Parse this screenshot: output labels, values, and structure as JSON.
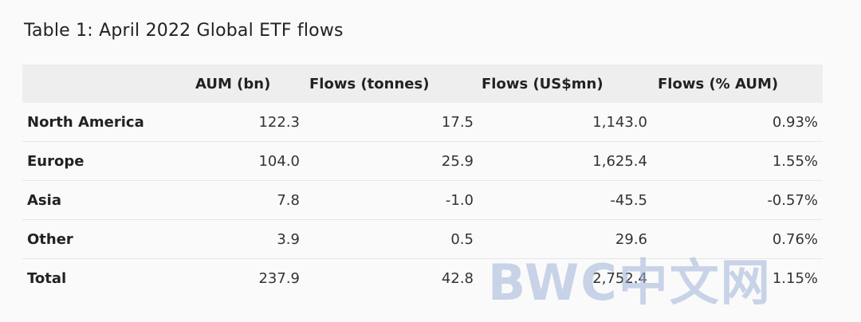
{
  "title": "Table 1: April 2022 Global ETF flows",
  "table": {
    "headers": [
      "",
      "AUM (bn)",
      "Flows (tonnes)",
      "Flows (US$mn)",
      "Flows (% AUM)"
    ],
    "rows": [
      [
        "North America",
        "122.3",
        "17.5",
        "1,143.0",
        "0.93%"
      ],
      [
        "Europe",
        "104.0",
        "25.9",
        "1,625.4",
        "1.55%"
      ],
      [
        "Asia",
        "7.8",
        "-1.0",
        "-45.5",
        "-0.57%"
      ],
      [
        "Other",
        "3.9",
        "0.5",
        "29.6",
        "0.76%"
      ],
      [
        "Total",
        "237.9",
        "42.8",
        "2,752.4",
        "1.15%"
      ]
    ]
  },
  "watermark": {
    "text": "BWC中文网",
    "color": "#9fb2d8"
  }
}
